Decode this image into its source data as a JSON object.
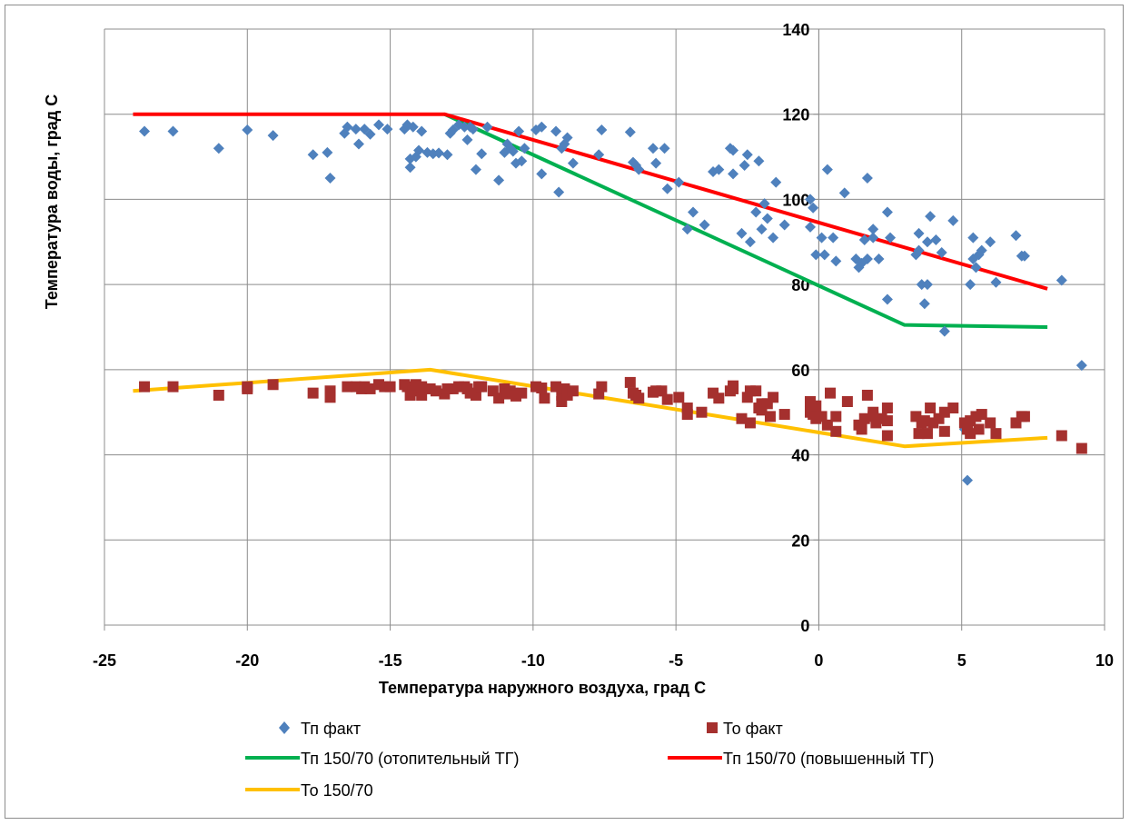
{
  "chart_data": {
    "type": "scatter",
    "xlabel": "Температура наружного воздуха, град С",
    "ylabel": "Температура воды, град С",
    "xlim": [
      -25,
      10
    ],
    "ylim": [
      0,
      140
    ],
    "x_ticks": [
      -25,
      -20,
      -15,
      -10,
      -5,
      0,
      5,
      10
    ],
    "y_ticks": [
      0,
      20,
      40,
      60,
      80,
      100,
      120,
      140
    ],
    "grid": true,
    "legend_position": "bottom",
    "scatter_series": [
      {
        "name": "Тп факт",
        "marker": "diamond",
        "color": "#4f81bd",
        "points": [
          [
            -23.6,
            116
          ],
          [
            -22.6,
            116
          ],
          [
            -21,
            112
          ],
          [
            -20,
            116.3
          ],
          [
            -19.1,
            115
          ],
          [
            -17.7,
            110.5
          ],
          [
            -17.2,
            111
          ],
          [
            -17.1,
            105
          ],
          [
            -16.6,
            115.5
          ],
          [
            -16.5,
            117
          ],
          [
            -16.2,
            116.5
          ],
          [
            -16.1,
            113
          ],
          [
            -15.9,
            116.5
          ],
          [
            -15.7,
            115.3
          ],
          [
            -15.4,
            117.5
          ],
          [
            -15.1,
            116.5
          ],
          [
            -14.5,
            116.5
          ],
          [
            -14.4,
            117.5
          ],
          [
            -14.3,
            107.5
          ],
          [
            -14.3,
            109.5
          ],
          [
            -14.2,
            117
          ],
          [
            -14.1,
            110
          ],
          [
            -14,
            111.5
          ],
          [
            -13.9,
            116
          ],
          [
            -13.7,
            111
          ],
          [
            -13.5,
            110.7
          ],
          [
            -13.3,
            110.9
          ],
          [
            -13,
            110.5
          ],
          [
            -12.9,
            115.5
          ],
          [
            -12.8,
            116.3
          ],
          [
            -12.6,
            117.5
          ],
          [
            -12.4,
            117
          ],
          [
            -12.3,
            114
          ],
          [
            -12.2,
            117
          ],
          [
            -12.1,
            116.5
          ],
          [
            -12,
            107
          ],
          [
            -11.8,
            110.7
          ],
          [
            -11.6,
            117
          ],
          [
            -11.2,
            104.5
          ],
          [
            -11,
            111
          ],
          [
            -10.9,
            113
          ],
          [
            -10.8,
            112
          ],
          [
            -10.7,
            111.3
          ],
          [
            -10.6,
            108.5
          ],
          [
            -10.5,
            116
          ],
          [
            -10.4,
            109
          ],
          [
            -10.3,
            112
          ],
          [
            -9.9,
            116.3
          ],
          [
            -9.7,
            117
          ],
          [
            -9.7,
            106
          ],
          [
            -9.2,
            116
          ],
          [
            -9.1,
            101.7
          ],
          [
            -9,
            112
          ],
          [
            -8.9,
            113
          ],
          [
            -8.8,
            114.5
          ],
          [
            -8.6,
            108.5
          ],
          [
            -7.7,
            110.5
          ],
          [
            -7.6,
            116.3
          ],
          [
            -6.6,
            115.8
          ],
          [
            -6.5,
            108.7
          ],
          [
            -6.4,
            108
          ],
          [
            -6.3,
            107
          ],
          [
            -5.8,
            112
          ],
          [
            -5.7,
            108.5
          ],
          [
            -5.4,
            112
          ],
          [
            -5.3,
            102.5
          ],
          [
            -4.9,
            104
          ],
          [
            -4.6,
            93
          ],
          [
            -4.4,
            97
          ],
          [
            -4,
            94
          ],
          [
            -3.7,
            106.5
          ],
          [
            -3.5,
            107
          ],
          [
            -3.1,
            112
          ],
          [
            -3,
            111.5
          ],
          [
            -3,
            106
          ],
          [
            -2.7,
            92
          ],
          [
            -2.6,
            108
          ],
          [
            -2.5,
            110.5
          ],
          [
            -2.4,
            90
          ],
          [
            -2.2,
            97
          ],
          [
            -2.1,
            109
          ],
          [
            -2,
            93
          ],
          [
            -1.9,
            99
          ],
          [
            -1.8,
            95.5
          ],
          [
            -1.6,
            91
          ],
          [
            -1.5,
            104
          ],
          [
            -1.2,
            94
          ],
          [
            -0.3,
            93.5
          ],
          [
            -0.3,
            100
          ],
          [
            -0.2,
            98
          ],
          [
            -0.1,
            87
          ],
          [
            0.1,
            91
          ],
          [
            0.2,
            87
          ],
          [
            0.3,
            107
          ],
          [
            0.5,
            91
          ],
          [
            0.6,
            85.5
          ],
          [
            0.9,
            101.5
          ],
          [
            1.3,
            86
          ],
          [
            1.4,
            84
          ],
          [
            1.5,
            85
          ],
          [
            1.6,
            90.5
          ],
          [
            1.7,
            86
          ],
          [
            1.7,
            105
          ],
          [
            1.9,
            93
          ],
          [
            1.9,
            91
          ],
          [
            2.1,
            86
          ],
          [
            2.4,
            97
          ],
          [
            2.4,
            76.5
          ],
          [
            2.5,
            91
          ],
          [
            3.4,
            87
          ],
          [
            3.5,
            88
          ],
          [
            3.5,
            92
          ],
          [
            3.6,
            80
          ],
          [
            3.7,
            75.5
          ],
          [
            3.8,
            90
          ],
          [
            3.8,
            80
          ],
          [
            3.9,
            96
          ],
          [
            4.1,
            90.5
          ],
          [
            4.3,
            87.5
          ],
          [
            4.4,
            69
          ],
          [
            4.7,
            95
          ],
          [
            5.1,
            46
          ],
          [
            5.2,
            34
          ],
          [
            5.3,
            80
          ],
          [
            5.4,
            86
          ],
          [
            5.4,
            91
          ],
          [
            5.5,
            84
          ],
          [
            5.6,
            87
          ],
          [
            5.7,
            88
          ],
          [
            6,
            90
          ],
          [
            6.2,
            80.5
          ],
          [
            6.9,
            91.5
          ],
          [
            7.1,
            86.7
          ],
          [
            7.2,
            86.7
          ],
          [
            8.5,
            81
          ],
          [
            9.2,
            61
          ]
        ]
      },
      {
        "name": "То факт",
        "marker": "square",
        "color": "#a5302e",
        "points": [
          [
            -23.6,
            56
          ],
          [
            -22.6,
            56
          ],
          [
            -21,
            54
          ],
          [
            -20,
            56
          ],
          [
            -20,
            55.5
          ],
          [
            -19.1,
            56.5
          ],
          [
            -17.7,
            54.5
          ],
          [
            -17.1,
            55
          ],
          [
            -17.1,
            53.5
          ],
          [
            -16.5,
            56
          ],
          [
            -16.2,
            56
          ],
          [
            -16,
            55.5
          ],
          [
            -15.9,
            56
          ],
          [
            -15.7,
            55.5
          ],
          [
            -15.4,
            56.5
          ],
          [
            -15.2,
            56
          ],
          [
            -15,
            56
          ],
          [
            -14.5,
            56.5
          ],
          [
            -14.4,
            56
          ],
          [
            -14.3,
            54
          ],
          [
            -14.2,
            55
          ],
          [
            -14.1,
            56.5
          ],
          [
            -13.9,
            54
          ],
          [
            -13.9,
            56
          ],
          [
            -13.6,
            55.5
          ],
          [
            -13.4,
            55
          ],
          [
            -13.1,
            54.3
          ],
          [
            -13,
            55.5
          ],
          [
            -12.8,
            55.5
          ],
          [
            -12.6,
            56
          ],
          [
            -12.4,
            56
          ],
          [
            -12.3,
            55.5
          ],
          [
            -12.2,
            54.5
          ],
          [
            -12,
            54
          ],
          [
            -11.9,
            56
          ],
          [
            -11.8,
            56
          ],
          [
            -11.4,
            55
          ],
          [
            -11.2,
            53.3
          ],
          [
            -11,
            55.5
          ],
          [
            -10.9,
            54.3
          ],
          [
            -10.8,
            55
          ],
          [
            -10.7,
            54.5
          ],
          [
            -10.6,
            53.8
          ],
          [
            -10.4,
            54.5
          ],
          [
            -9.9,
            56
          ],
          [
            -9.7,
            55.7
          ],
          [
            -9.6,
            53.3
          ],
          [
            -9.2,
            56
          ],
          [
            -9,
            54
          ],
          [
            -9,
            52.5
          ],
          [
            -8.9,
            55.5
          ],
          [
            -8.8,
            54
          ],
          [
            -8.6,
            55
          ],
          [
            -7.7,
            54.3
          ],
          [
            -7.6,
            56
          ],
          [
            -6.6,
            57
          ],
          [
            -6.5,
            54.5
          ],
          [
            -6.4,
            54
          ],
          [
            -6.3,
            53.3
          ],
          [
            -5.8,
            54.7
          ],
          [
            -5.7,
            55
          ],
          [
            -5.5,
            55
          ],
          [
            -5.3,
            53
          ],
          [
            -4.9,
            53.5
          ],
          [
            -4.6,
            49.5
          ],
          [
            -4.6,
            51
          ],
          [
            -4.1,
            50
          ],
          [
            -3.7,
            54.5
          ],
          [
            -3.5,
            53.3
          ],
          [
            -3.1,
            55
          ],
          [
            -3,
            55.5
          ],
          [
            -3,
            56.2
          ],
          [
            -2.7,
            48.5
          ],
          [
            -2.5,
            53.5
          ],
          [
            -2.4,
            55
          ],
          [
            -2.4,
            47.5
          ],
          [
            -2.2,
            55
          ],
          [
            -2.1,
            51
          ],
          [
            -2,
            52
          ],
          [
            -2,
            50.5
          ],
          [
            -1.8,
            52
          ],
          [
            -1.7,
            49
          ],
          [
            -1.6,
            53.5
          ],
          [
            -1.2,
            49.5
          ],
          [
            -0.3,
            50
          ],
          [
            -0.3,
            52.5
          ],
          [
            -0.2,
            49.5
          ],
          [
            -0.1,
            51.5
          ],
          [
            -0.1,
            48.5
          ],
          [
            0.1,
            49
          ],
          [
            0.3,
            47
          ],
          [
            0.4,
            54.5
          ],
          [
            0.6,
            49
          ],
          [
            0.6,
            45.5
          ],
          [
            1,
            52.5
          ],
          [
            1.4,
            47
          ],
          [
            1.5,
            46
          ],
          [
            1.6,
            48.5
          ],
          [
            1.7,
            54
          ],
          [
            1.9,
            49
          ],
          [
            1.9,
            50
          ],
          [
            2,
            47.5
          ],
          [
            2.2,
            48.5
          ],
          [
            2.4,
            51
          ],
          [
            2.4,
            48
          ],
          [
            2.4,
            44.5
          ],
          [
            3.4,
            49
          ],
          [
            3.5,
            45
          ],
          [
            3.6,
            47.5
          ],
          [
            3.7,
            48
          ],
          [
            3.8,
            45
          ],
          [
            3.9,
            51
          ],
          [
            4,
            47.5
          ],
          [
            4.2,
            48.5
          ],
          [
            4.4,
            45.5
          ],
          [
            4.4,
            50
          ],
          [
            4.7,
            51
          ],
          [
            5.1,
            47.5
          ],
          [
            5.2,
            46
          ],
          [
            5.3,
            45
          ],
          [
            5.3,
            48
          ],
          [
            5.5,
            49
          ],
          [
            5.6,
            46
          ],
          [
            5.7,
            49.5
          ],
          [
            6,
            47.5
          ],
          [
            6.2,
            45
          ],
          [
            6.9,
            47.5
          ],
          [
            7.1,
            49
          ],
          [
            7.2,
            49
          ],
          [
            8.5,
            44.5
          ],
          [
            9.2,
            41.5
          ]
        ]
      }
    ],
    "line_series": [
      {
        "name": "Тп 150/70 (отопительный ТГ)",
        "color": "#00b050",
        "points": [
          [
            -13.1,
            120
          ],
          [
            3,
            70.5
          ],
          [
            8,
            70
          ]
        ]
      },
      {
        "name": "Тп 150/70 (повышенный ТГ)",
        "color": "#ff0000",
        "points": [
          [
            -24,
            120
          ],
          [
            -13.1,
            120
          ],
          [
            8,
            79
          ]
        ]
      },
      {
        "name": "То 150/70",
        "color": "#ffc000",
        "points": [
          [
            -24,
            55
          ],
          [
            -13.6,
            60
          ],
          [
            3,
            42
          ],
          [
            8,
            44
          ]
        ]
      }
    ],
    "legend": {
      "series_1": "Тп факт",
      "series_2": "То факт",
      "series_3": "Тп 150/70 (отопительный ТГ)",
      "series_4": "Тп 150/70 (повышенный ТГ)",
      "series_5": "То 150/70"
    }
  }
}
